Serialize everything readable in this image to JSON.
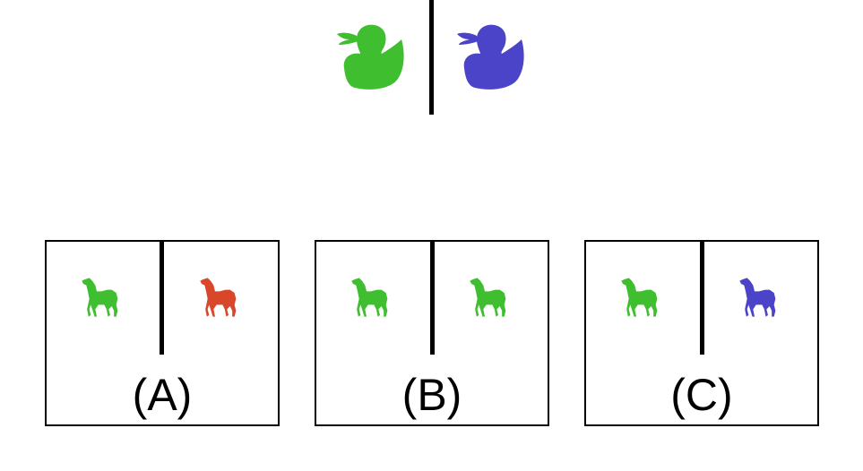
{
  "example": {
    "left_object": {
      "icon": "duck-icon",
      "color": "#3fbf2f"
    },
    "right_object": {
      "icon": "duck-icon",
      "color": "#4b44c8"
    }
  },
  "options": [
    {
      "label": "(A)",
      "left": {
        "icon": "horse-icon",
        "color": "#3fbf2f"
      },
      "right": {
        "icon": "horse-icon",
        "color": "#d9472a"
      }
    },
    {
      "label": "(B)",
      "left": {
        "icon": "horse-icon",
        "color": "#3fbf2f"
      },
      "right": {
        "icon": "horse-icon",
        "color": "#3fbf2f"
      }
    },
    {
      "label": "(C)",
      "left": {
        "icon": "horse-icon",
        "color": "#3fbf2f"
      },
      "right": {
        "icon": "horse-icon",
        "color": "#4b44c8"
      }
    }
  ]
}
